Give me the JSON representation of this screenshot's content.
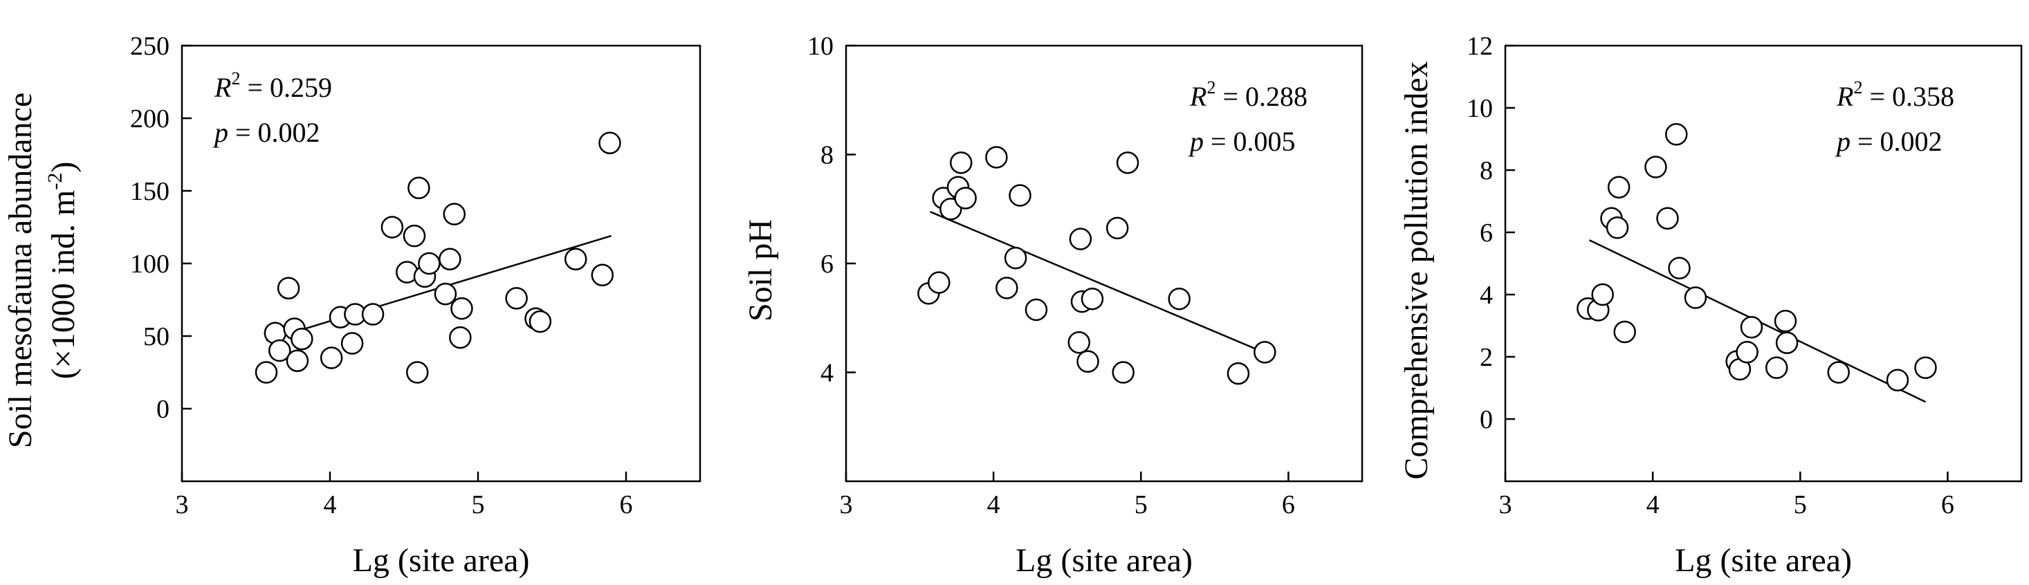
{
  "chart_data": [
    {
      "type": "scatter",
      "title": "",
      "xlabel": "Lg (site area)",
      "ylabel": "Soil mesofauna abundance",
      "ylabel_line2": "(×1000 ind. m",
      "ylabel_line2_sup": "-2",
      "ylabel_line2_end": ")",
      "xlim": [
        3,
        6.5
      ],
      "ylim": [
        -50,
        250
      ],
      "xticks": [
        3,
        4,
        5,
        6
      ],
      "yticks": [
        0,
        50,
        100,
        150,
        200,
        250
      ],
      "grid": false,
      "stats": {
        "r2_label": "R",
        "r2_exp": "2",
        "r2_value": "= 0.259",
        "p_label": "p",
        "p_value": "= 0.002",
        "position": "top-left"
      },
      "points": [
        {
          "x": 3.57,
          "y": 25
        },
        {
          "x": 3.63,
          "y": 52
        },
        {
          "x": 3.66,
          "y": 40
        },
        {
          "x": 3.72,
          "y": 83
        },
        {
          "x": 3.76,
          "y": 55
        },
        {
          "x": 3.78,
          "y": 33
        },
        {
          "x": 3.81,
          "y": 48
        },
        {
          "x": 4.01,
          "y": 35
        },
        {
          "x": 4.07,
          "y": 63
        },
        {
          "x": 4.15,
          "y": 45
        },
        {
          "x": 4.17,
          "y": 65
        },
        {
          "x": 4.29,
          "y": 65
        },
        {
          "x": 4.42,
          "y": 125
        },
        {
          "x": 4.52,
          "y": 94
        },
        {
          "x": 4.57,
          "y": 119
        },
        {
          "x": 4.6,
          "y": 152
        },
        {
          "x": 4.59,
          "y": 25
        },
        {
          "x": 4.64,
          "y": 91
        },
        {
          "x": 4.67,
          "y": 100
        },
        {
          "x": 4.78,
          "y": 79
        },
        {
          "x": 4.81,
          "y": 103
        },
        {
          "x": 4.84,
          "y": 134
        },
        {
          "x": 4.89,
          "y": 69
        },
        {
          "x": 4.88,
          "y": 49
        },
        {
          "x": 5.26,
          "y": 76
        },
        {
          "x": 5.39,
          "y": 62
        },
        {
          "x": 5.42,
          "y": 60
        },
        {
          "x": 5.66,
          "y": 103
        },
        {
          "x": 5.84,
          "y": 92
        },
        {
          "x": 5.89,
          "y": 183
        }
      ],
      "fit": {
        "x": [
          3.57,
          5.9
        ],
        "y": [
          47,
          119
        ]
      }
    },
    {
      "type": "scatter",
      "title": "",
      "xlabel": "Lg (site area)",
      "ylabel": "Soil pH",
      "xlim": [
        3,
        6.5
      ],
      "ylim": [
        2,
        10
      ],
      "xticks": [
        3,
        4,
        5,
        6
      ],
      "yticks": [
        4,
        6,
        8,
        10
      ],
      "grid": false,
      "stats": {
        "r2_label": "R",
        "r2_exp": "2",
        "r2_value": "= 0.288",
        "p_label": "p",
        "p_value": "= 0.005",
        "position": "top-right"
      },
      "points": [
        {
          "x": 3.56,
          "y": 5.45
        },
        {
          "x": 3.63,
          "y": 5.65
        },
        {
          "x": 3.66,
          "y": 7.2
        },
        {
          "x": 3.71,
          "y": 7.0
        },
        {
          "x": 3.76,
          "y": 7.4
        },
        {
          "x": 3.78,
          "y": 7.85
        },
        {
          "x": 3.81,
          "y": 7.2
        },
        {
          "x": 4.02,
          "y": 7.95
        },
        {
          "x": 4.09,
          "y": 5.55
        },
        {
          "x": 4.15,
          "y": 6.1
        },
        {
          "x": 4.18,
          "y": 7.25
        },
        {
          "x": 4.29,
          "y": 5.15
        },
        {
          "x": 4.58,
          "y": 4.55
        },
        {
          "x": 4.59,
          "y": 6.45
        },
        {
          "x": 4.6,
          "y": 5.3
        },
        {
          "x": 4.64,
          "y": 4.2
        },
        {
          "x": 4.67,
          "y": 5.35
        },
        {
          "x": 4.84,
          "y": 6.65
        },
        {
          "x": 4.88,
          "y": 4.0
        },
        {
          "x": 4.91,
          "y": 7.85
        },
        {
          "x": 5.26,
          "y": 5.35
        },
        {
          "x": 5.66,
          "y": 3.98
        },
        {
          "x": 5.84,
          "y": 4.37
        }
      ],
      "fit": {
        "x": [
          3.57,
          5.85
        ],
        "y": [
          6.95,
          4.35
        ]
      }
    },
    {
      "type": "scatter",
      "title": "",
      "xlabel": "Lg (site area)",
      "ylabel": "Comprehensive pollution index",
      "xlim": [
        3,
        6.5
      ],
      "ylim": [
        -2,
        12
      ],
      "xticks": [
        3,
        4,
        5,
        6
      ],
      "yticks": [
        0,
        2,
        4,
        6,
        8,
        10,
        12
      ],
      "grid": false,
      "stats": {
        "r2_label": "R",
        "r2_exp": "2",
        "r2_value": "= 0.358",
        "p_label": "p",
        "p_value": "= 0.002",
        "position": "top-right"
      },
      "points": [
        {
          "x": 3.56,
          "y": 3.55
        },
        {
          "x": 3.63,
          "y": 3.5
        },
        {
          "x": 3.66,
          "y": 4.0
        },
        {
          "x": 3.72,
          "y": 6.45
        },
        {
          "x": 3.76,
          "y": 6.15
        },
        {
          "x": 3.77,
          "y": 7.45
        },
        {
          "x": 3.81,
          "y": 2.8
        },
        {
          "x": 4.02,
          "y": 8.1
        },
        {
          "x": 4.1,
          "y": 6.45
        },
        {
          "x": 4.16,
          "y": 9.15
        },
        {
          "x": 4.18,
          "y": 4.85
        },
        {
          "x": 4.29,
          "y": 3.9
        },
        {
          "x": 4.57,
          "y": 1.85
        },
        {
          "x": 4.59,
          "y": 1.6
        },
        {
          "x": 4.64,
          "y": 2.15
        },
        {
          "x": 4.67,
          "y": 2.95
        },
        {
          "x": 4.84,
          "y": 1.65
        },
        {
          "x": 4.9,
          "y": 3.15
        },
        {
          "x": 4.91,
          "y": 2.45
        },
        {
          "x": 5.26,
          "y": 1.5
        },
        {
          "x": 5.66,
          "y": 1.25
        },
        {
          "x": 5.85,
          "y": 1.65
        }
      ],
      "fit": {
        "x": [
          3.57,
          5.85
        ],
        "y": [
          5.75,
          0.55
        ]
      }
    }
  ]
}
